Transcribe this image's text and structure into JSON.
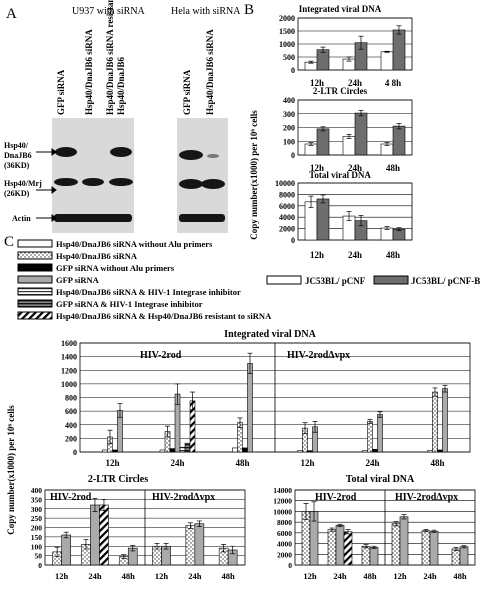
{
  "panels": {
    "A": "A",
    "B": "B",
    "C": "C"
  },
  "blot": {
    "title_left": "U937 with siRNA",
    "title_right": "Hela with siRNA",
    "lanes_left": [
      "GFP siRNA",
      "Hsp40/DnaJB6 siRNA",
      "Hsp40/DnaJB6 siRNA resistant",
      "Hsp40/DnaJB6"
    ],
    "lanes_right": [
      "GFP siRNA",
      "Hsp40/DnaJB6 siRNA"
    ],
    "row_labels": [
      "Hsp40/",
      "DnaJB6",
      "(36KD)",
      "Hsp40/Mrj",
      "(26KD)",
      "Actin"
    ]
  },
  "colors": {
    "white_bar": "#ffffff",
    "dark_bar": "#6e6e6e",
    "grid": "#000000"
  },
  "chart_data": [
    {
      "type": "bar",
      "panel": "B",
      "title": "Integrated viral DNA",
      "categories": [
        "12h",
        "24h",
        "4 8h"
      ],
      "series": [
        {
          "name": "JC53BL/ pCNF",
          "values": [
            300,
            420,
            700
          ],
          "errors": [
            40,
            80,
            20
          ]
        },
        {
          "name": "JC53BL/ pCNF-B6",
          "values": [
            780,
            1050,
            1540
          ],
          "errors": [
            100,
            250,
            160
          ]
        }
      ],
      "ylim": [
        0,
        2000
      ],
      "yticks": [
        0,
        500,
        1000,
        1500,
        2000
      ]
    },
    {
      "type": "bar",
      "panel": "B",
      "title": "2-LTR Circles",
      "categories": [
        "12h",
        "24h",
        "48h"
      ],
      "series": [
        {
          "name": "JC53BL/ pCNF",
          "values": [
            80,
            135,
            80
          ],
          "errors": [
            10,
            15,
            10
          ]
        },
        {
          "name": "JC53BL/ pCNF-B6",
          "values": [
            190,
            305,
            210
          ],
          "errors": [
            15,
            20,
            20
          ]
        }
      ],
      "ylim": [
        0,
        400
      ],
      "yticks": [
        0,
        100,
        200,
        300,
        400
      ]
    },
    {
      "type": "bar",
      "panel": "B",
      "title": "Total viral DNA",
      "categories": [
        "12h",
        "24h",
        "48h"
      ],
      "series": [
        {
          "name": "JC53BL/ pCNF",
          "values": [
            6700,
            4200,
            2100
          ],
          "errors": [
            1000,
            800,
            250
          ]
        },
        {
          "name": "JC53BL/ pCNF-B6",
          "values": [
            7200,
            3400,
            1900
          ],
          "errors": [
            700,
            900,
            250
          ]
        }
      ],
      "ylim": [
        0,
        10000
      ],
      "yticks": [
        0,
        2000,
        4000,
        6000,
        8000,
        10000
      ],
      "ylabel": "Copy number(x1000) per 10⁶ cells",
      "legend": [
        "JC53BL/ pCNF",
        "JC53BL/ pCNF-B6"
      ]
    },
    {
      "type": "bar",
      "panel": "C",
      "title": "Integrated viral DNA",
      "groups": [
        "HIV-2rod",
        "HIV-2rodΔvpx"
      ],
      "categories": [
        "12h",
        "24h",
        "48h",
        "12h",
        "24h",
        "48h"
      ],
      "series": [
        {
          "name": "Hsp40/DnaJB6 siRNA without Alu primers",
          "values": [
            30,
            30,
            60,
            20,
            20,
            20
          ]
        },
        {
          "name": "Hsp40/DnaJB6 siRNA",
          "values": [
            220,
            300,
            430,
            350,
            450,
            880
          ],
          "errors": [
            100,
            80,
            70,
            80,
            30,
            60
          ]
        },
        {
          "name": "GFP siRNA without Alu primers",
          "values": [
            30,
            50,
            60,
            20,
            40,
            30
          ]
        },
        {
          "name": "GFP siRNA",
          "values": [
            610,
            850,
            1300,
            370,
            550,
            930
          ],
          "errors": [
            100,
            150,
            150,
            80,
            40,
            50
          ]
        },
        {
          "name": "Hsp40/DnaJB6 siRNA & HIV-1 Integrase inhibitor",
          "values": [
            0,
            70,
            0,
            0,
            0,
            0
          ]
        },
        {
          "name": "GFP siRNA & HIV-1 Integrase inhibitor",
          "values": [
            0,
            130,
            0,
            0,
            0,
            0
          ]
        },
        {
          "name": "Hsp40/DnaJB6 siRNA & Hsp40/DnaJB6 resistant to siRNA",
          "values": [
            0,
            750,
            0,
            0,
            0,
            0
          ],
          "errors": [
            0,
            130,
            0,
            0,
            0,
            0
          ]
        }
      ],
      "ylim": [
        0,
        1600
      ],
      "yticks": [
        0,
        200,
        400,
        600,
        800,
        1000,
        1200,
        1400,
        1600
      ],
      "ylabel": "Copy number(x1000) per 10⁶ cells"
    },
    {
      "type": "bar",
      "panel": "C",
      "title": "2-LTR Circles",
      "groups": [
        "HIV-2rod",
        "HIV-2rodΔvpx"
      ],
      "categories": [
        "12h",
        "24h",
        "48h",
        "12h",
        "24h",
        "48h"
      ],
      "series": [
        {
          "name": "Hsp40/DnaJB6 siRNA",
          "values": [
            70,
            110,
            45,
            100,
            210,
            90
          ],
          "errors": [
            25,
            25,
            10,
            15,
            15,
            20
          ]
        },
        {
          "name": "GFP siRNA",
          "values": [
            160,
            320,
            90,
            100,
            220,
            80
          ],
          "errors": [
            15,
            35,
            15,
            15,
            15,
            20
          ]
        },
        {
          "name": "Hsp40/DnaJB6 siRNA & Hsp40/DnaJB6 resistant to siRNA",
          "values": [
            0,
            320,
            0,
            0,
            0,
            0
          ],
          "errors": [
            0,
            30,
            0,
            0,
            0,
            0
          ]
        }
      ],
      "ylim": [
        0,
        400
      ],
      "yticks": [
        0,
        50,
        100,
        150,
        200,
        250,
        300,
        350,
        400
      ]
    },
    {
      "type": "bar",
      "panel": "C",
      "title": "Total viral DNA",
      "groups": [
        "HIV-2rod",
        "HIV-2rodΔvpx"
      ],
      "categories": [
        "12h",
        "24h",
        "48h",
        "12h",
        "24h",
        "48h"
      ],
      "series": [
        {
          "name": "Hsp40/DnaJB6 siRNA",
          "values": [
            10000,
            6600,
            3500,
            7700,
            6400,
            3000
          ],
          "errors": [
            1500,
            300,
            300,
            400,
            200,
            300
          ]
        },
        {
          "name": "GFP siRNA",
          "values": [
            10000,
            7400,
            3300,
            9000,
            6300,
            3400
          ],
          "errors": [
            1800,
            200,
            200,
            400,
            200,
            200
          ]
        },
        {
          "name": "Hsp40/DnaJB6 siRNA & Hsp40/DnaJB6 resistant to siRNA",
          "values": [
            0,
            6200,
            0,
            0,
            0,
            0
          ],
          "errors": [
            0,
            400,
            0,
            0,
            0,
            0
          ]
        }
      ],
      "ylim": [
        0,
        14000
      ],
      "yticks": [
        0,
        2000,
        4000,
        6000,
        8000,
        10000,
        12000,
        14000
      ]
    }
  ]
}
